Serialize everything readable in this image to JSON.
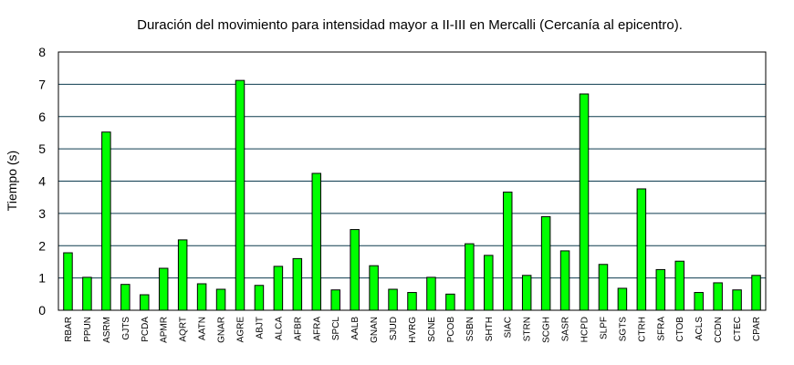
{
  "chart_data": {
    "type": "bar",
    "title": "Duración del movimiento para intensidad mayor a II-III en Mercalli (Cercanía al epicentro).",
    "xlabel": "",
    "ylabel": "Tiempo (s)",
    "ylim": [
      0,
      8
    ],
    "yticks": [
      "0",
      "1",
      "2",
      "3",
      "4",
      "5",
      "6",
      "7",
      "8"
    ],
    "grid": true,
    "categories": [
      "RBAR",
      "PPUN",
      "ASRM",
      "GJTS",
      "PCDA",
      "APMR",
      "AQRT",
      "AATN",
      "GNAR",
      "AGRE",
      "ABJT",
      "ALCA",
      "AFBR",
      "AFRA",
      "SPCL",
      "AALB",
      "GNAN",
      "SJUD",
      "HVRG",
      "SCNE",
      "PCOB",
      "SSBN",
      "SHTH",
      "SIAC",
      "STRN",
      "SCGH",
      "SASR",
      "HCPD",
      "SLPF",
      "SGTS",
      "CTRH",
      "SFRA",
      "CTOB",
      "ACLS",
      "CCDN",
      "CTEC",
      "CPAR"
    ],
    "values": [
      1.78,
      1.02,
      5.52,
      0.8,
      0.48,
      1.3,
      2.18,
      0.82,
      0.65,
      7.12,
      0.77,
      1.36,
      1.6,
      4.24,
      0.63,
      2.5,
      1.38,
      0.65,
      0.55,
      1.02,
      0.5,
      2.06,
      1.7,
      3.66,
      1.08,
      2.9,
      1.84,
      6.7,
      1.42,
      0.68,
      3.76,
      1.26,
      1.52,
      0.55,
      0.85,
      0.63,
      1.08
    ],
    "colors": {
      "bar_fill": "#00ff00",
      "bar_stroke": "#000000",
      "grid": "#0d3b4f",
      "frame": "#000000"
    }
  }
}
